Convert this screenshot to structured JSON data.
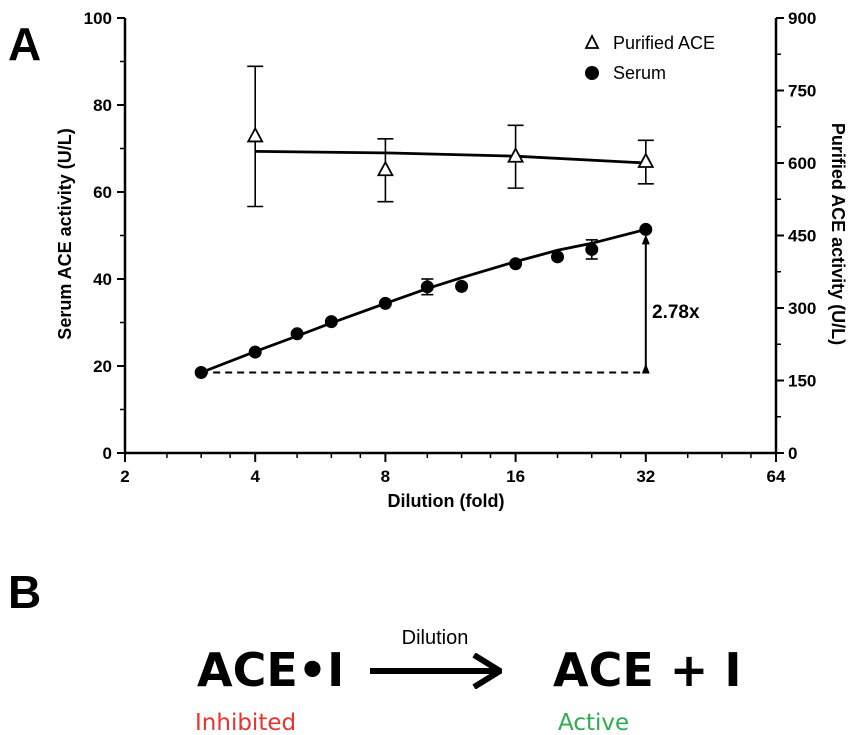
{
  "panel_a_letter": "A",
  "panel_b_letter": "B",
  "chart_data": {
    "type": "line",
    "xlabel": "Dilution (fold)",
    "ylabel": "Serum ACE activity (U/L)",
    "ylabel_right": "Purified ACE activity (U/L)",
    "x_scale": "log2",
    "xlim": [
      2,
      64
    ],
    "x_ticks": [
      "2",
      "4",
      "8",
      "16",
      "32",
      "64"
    ],
    "ylim": [
      0,
      100
    ],
    "y_ticks": [
      "0",
      "20",
      "40",
      "60",
      "80",
      "100"
    ],
    "ylim_right": [
      0,
      900
    ],
    "y_ticks_right": [
      "0",
      "150",
      "300",
      "450",
      "600",
      "750",
      "900"
    ],
    "grid": false,
    "legend_position": "top-right",
    "series": [
      {
        "name": "Purified ACE",
        "marker": "open-triangle",
        "axis": "right",
        "x": [
          4,
          8,
          16,
          32
        ],
        "y": [
          655,
          585,
          613,
          602
        ],
        "error": [
          145,
          65,
          65,
          45
        ],
        "fit_x": [
          4,
          8,
          16,
          32
        ],
        "fit_y": [
          624,
          621,
          614,
          600
        ]
      },
      {
        "name": "Serum",
        "marker": "filled-circle",
        "axis": "left",
        "x": [
          3,
          4,
          5,
          6,
          8,
          10,
          12,
          16,
          20,
          24,
          32
        ],
        "y": [
          18.5,
          23.2,
          27.4,
          30.2,
          34.4,
          38.2,
          38.3,
          43.5,
          45.1,
          46.8,
          51.4
        ],
        "error": [
          0,
          0,
          0,
          0,
          0,
          1.8,
          0,
          0,
          0,
          2.2,
          0
        ],
        "fit_x": [
          3,
          4,
          5,
          6,
          8,
          10,
          12,
          16,
          20,
          24,
          32
        ],
        "fit_y": [
          18.5,
          23.3,
          26.9,
          29.9,
          34.4,
          37.8,
          40.3,
          44.0,
          46.6,
          48.2,
          51.4
        ]
      }
    ],
    "annotation": {
      "text": "2.78x",
      "x": 32,
      "y_from": 18.5,
      "y_to": 51.4,
      "baseline_x_from": 3,
      "baseline_y": 18.5
    }
  },
  "scheme": {
    "left": "ACE•I",
    "arrow_label": "Dilution",
    "right": "ACE + I",
    "left_state": "Inhibited",
    "right_state": "Active"
  },
  "colors": {
    "inhibited": "#e8322e",
    "active": "#2eab4f",
    "ink": "#000000"
  }
}
